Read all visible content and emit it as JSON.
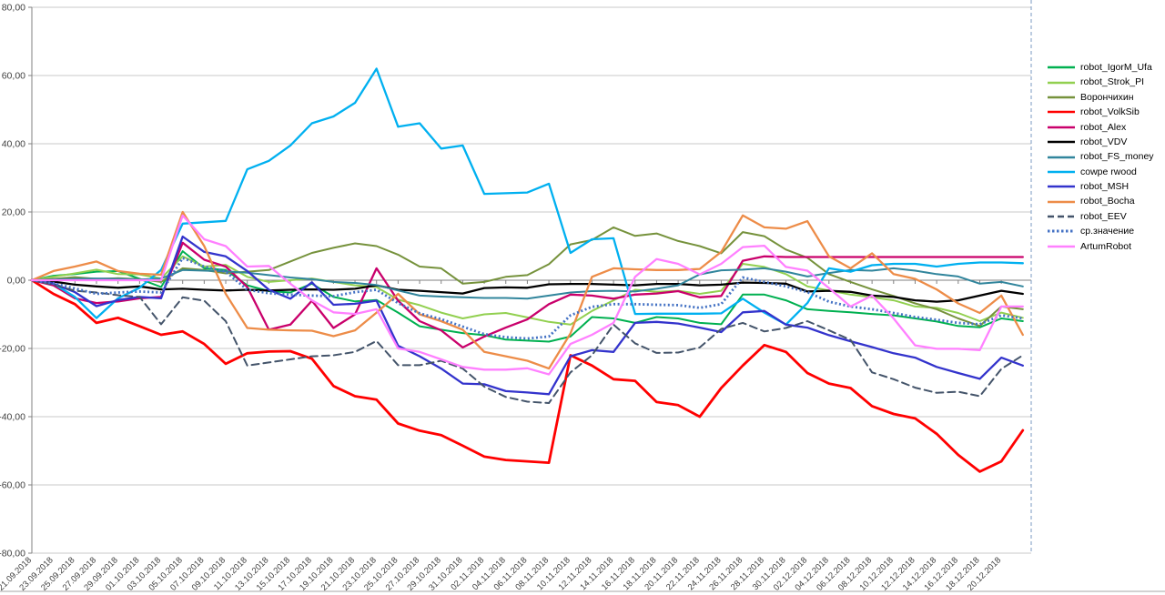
{
  "chart_data": {
    "type": "line",
    "title": "",
    "xlabel": "",
    "ylabel": "",
    "ylim": [
      -80,
      80
    ],
    "grid": true,
    "legend_position": "right",
    "y_tick_labels": [
      "80,00",
      "60,00",
      "40,00",
      "20,00",
      "0,00",
      "-20,00",
      "-40,00",
      "-60,00",
      "-80,00"
    ],
    "y_tick_values": [
      80,
      60,
      40,
      20,
      0,
      -20,
      -40,
      -60,
      -80
    ],
    "x_labels": [
      "21.09.2018",
      "23.09.2018",
      "25.09.2018",
      "27.09.2018",
      "29.09.2018",
      "01.10.2018",
      "03.10.2018",
      "05.10.2018",
      "07.10.2018",
      "09.10.2018",
      "11.10.2018",
      "13.10.2018",
      "15.10.2018",
      "17.10.2018",
      "19.10.2018",
      "21.10.2018",
      "23.10.2018",
      "25.10.2018",
      "27.10.2018",
      "29.10.2018",
      "31.10.2018",
      "02.11.2018",
      "04.11.2018",
      "06.11.2018",
      "08.11.2018",
      "10.11.2018",
      "12.11.2018",
      "14.11.2018",
      "16.11.2018",
      "18.11.2018",
      "20.11.2018",
      "22.11.2018",
      "24.11.2018",
      "26.11.2018",
      "28.11.2018",
      "30.11.2018",
      "02.12.2018",
      "04.12.2018",
      "06.12.2018",
      "08.12.2018",
      "10.12.2018",
      "12.12.2018",
      "14.12.2018",
      "16.12.2018",
      "18.12.2018",
      "20.12.2018",
      ""
    ],
    "axis_color": "#808080",
    "gridline_color": "#c9c9c9",
    "tick_label_color": "#3f3f3f",
    "page_break_line_color": "#7a99c0",
    "series": [
      {
        "name": "robot_IgorM_Ufa",
        "color": "#00B050",
        "style": "solid",
        "width": 2,
        "values": [
          0,
          1.3,
          1.8,
          2.5,
          2.7,
          0.4,
          -2,
          8.5,
          3.5,
          3,
          -1.5,
          -3.2,
          -3.6,
          -1,
          -4.9,
          -6.2,
          -5.8,
          -9.5,
          -13.5,
          -14.5,
          -15.5,
          -16.1,
          -17.4,
          -17.7,
          -18,
          -16.5,
          -10.8,
          -11.2,
          -12.5,
          -10.8,
          -11.2,
          -12.5,
          -12.9,
          -4.2,
          -4.2,
          -5.9,
          -8.5,
          -9,
          -9.4,
          -9.9,
          -10.3,
          -11.2,
          -12.1,
          -13.4,
          -13.8,
          -11.2,
          -12
        ]
      },
      {
        "name": "robot_Strok_PI",
        "color": "#92D050",
        "style": "solid",
        "width": 2,
        "values": [
          0,
          1,
          2,
          3.1,
          1.8,
          1.7,
          0.5,
          7,
          4,
          4.5,
          1,
          -0.5,
          0,
          0.5,
          -0.5,
          -1.5,
          -2,
          -5.7,
          -7.3,
          -9.5,
          -11.2,
          -10,
          -9.6,
          -10.9,
          -12.2,
          -13,
          -9,
          -5.9,
          -2.8,
          -3.4,
          -3.1,
          -4,
          -3.1,
          4.8,
          3.9,
          1.8,
          -1.8,
          -3,
          -4.2,
          -5,
          -5.9,
          -7.7,
          -8.1,
          -9.6,
          -12,
          -9.5,
          -11
        ]
      },
      {
        "name": "Ворончихин",
        "color": "#76923C",
        "style": "solid",
        "width": 2,
        "values": [
          0,
          0.4,
          0.9,
          0.4,
          0.6,
          0.3,
          -0.5,
          3.5,
          3,
          2,
          2.5,
          3,
          5.5,
          8,
          9.5,
          10.8,
          10,
          7.5,
          4,
          3.5,
          -1,
          -0.5,
          1,
          1.5,
          4.7,
          10.5,
          11.8,
          15.5,
          13,
          13.7,
          11.5,
          10,
          7.9,
          14.1,
          12.9,
          9,
          6.6,
          1.8,
          -0.5,
          -2.7,
          -4.6,
          -6.8,
          -8.5,
          -11.2,
          -13.4,
          -7.7,
          -8.5
        ]
      },
      {
        "name": "robot_VolkSib",
        "color": "#FF0000",
        "style": "solid",
        "width": 2.8,
        "values": [
          0,
          -4,
          -7,
          -12.5,
          -11,
          -13.5,
          -16,
          -15,
          -18.7,
          -24.5,
          -21.4,
          -20.9,
          -20.8,
          -23,
          -31,
          -34,
          -35,
          -42,
          -44.1,
          -45.4,
          -48.5,
          -51.7,
          -52.7,
          -53.1,
          -53.5,
          -22,
          -25,
          -29,
          -29.5,
          -35.7,
          -36.6,
          -40,
          -31.6,
          -25,
          -19,
          -21,
          -27.2,
          -30.3,
          -31.6,
          -36.9,
          -39.2,
          -40.5,
          -45,
          -51.2,
          -56.1,
          -53.1,
          -44
        ]
      },
      {
        "name": "robot_Alex",
        "color": "#C9006B",
        "style": "solid",
        "width": 2.3,
        "values": [
          0,
          -1.5,
          -5.3,
          -6.7,
          -6.2,
          -5.3,
          -4.9,
          11,
          6,
          4,
          -2,
          -14.5,
          -13,
          -6,
          -14,
          -10,
          3.5,
          -6,
          -12,
          -14.7,
          -19.7,
          -16.5,
          -13.9,
          -11.5,
          -7,
          -4.2,
          -4.5,
          -5.4,
          -4.2,
          -3.9,
          -3.2,
          -5,
          -4.6,
          5.7,
          7,
          6.8,
          6.8,
          6.8,
          6.8,
          6.8,
          6.8,
          6.8,
          6.8,
          6.8,
          6.8,
          6.8,
          6.8
        ]
      },
      {
        "name": "robot_VDV",
        "color": "#000000",
        "style": "solid",
        "width": 2.3,
        "values": [
          0,
          -0.4,
          -1.3,
          -1.8,
          -2.2,
          -1.8,
          -2.7,
          -2.5,
          -2.8,
          -3,
          -2.8,
          -3,
          -2.8,
          -2.7,
          -2.8,
          -2.5,
          -1.5,
          -2.8,
          -3.1,
          -3.5,
          -3.9,
          -2.3,
          -2.1,
          -2.2,
          -1.2,
          -1.1,
          -1.1,
          -1.3,
          -1.5,
          -1.1,
          -1.1,
          -1.5,
          -1.3,
          -0.7,
          -0.8,
          -1,
          -3.3,
          -3.1,
          -3.4,
          -4.5,
          -4.9,
          -5.9,
          -6.3,
          -5.9,
          -4.5,
          -3.1,
          -4
        ]
      },
      {
        "name": "robot_FS_money",
        "color": "#31859C",
        "style": "solid",
        "width": 2,
        "values": [
          0,
          0.2,
          0.4,
          0.5,
          0.4,
          0.2,
          0.5,
          3,
          2.8,
          2.6,
          2.2,
          1.5,
          0.8,
          0.3,
          -0.5,
          -0.8,
          -1.4,
          -3,
          -4.5,
          -4.8,
          -5,
          -5.2,
          -5.2,
          -5.4,
          -4.5,
          -3.6,
          -3.2,
          -3.1,
          -3.3,
          -2.5,
          -1.5,
          1.7,
          2.9,
          3.1,
          3.5,
          2.5,
          1.1,
          2.1,
          3,
          2.8,
          3.5,
          2.8,
          1.8,
          1.1,
          -1,
          -0.5,
          -1.8
        ]
      },
      {
        "name": "cowpe rwood",
        "color": "#00B0F0",
        "style": "solid",
        "width": 2.3,
        "values": [
          0,
          -1,
          -4.9,
          -11.1,
          -5.3,
          -2.2,
          3,
          16.6,
          17,
          17.4,
          32.5,
          35,
          39.5,
          46,
          48,
          52,
          62,
          45,
          46,
          38.6,
          39.5,
          25.3,
          25.5,
          25.7,
          28.3,
          8,
          12,
          12.3,
          -9.9,
          -9.8,
          -9.8,
          -9.8,
          -9.7,
          -5.4,
          -9.5,
          -13,
          -6.7,
          3.5,
          2.5,
          4.4,
          4.8,
          4.8,
          4,
          4.8,
          5.2,
          5.2,
          5
        ]
      },
      {
        "name": "robot_MSH",
        "color": "#3333CC",
        "style": "solid",
        "width": 2.3,
        "values": [
          0,
          -1,
          -3.5,
          -7.6,
          -5.8,
          -4.9,
          -5.3,
          12.8,
          8.3,
          7,
          2.7,
          -2.8,
          -5.4,
          -0.6,
          -7.2,
          -6.9,
          -6,
          -19.2,
          -22.3,
          -25.9,
          -30.3,
          -30.5,
          -32.5,
          -32.9,
          -33.4,
          -22.3,
          -20.5,
          -21,
          -12.5,
          -12.2,
          -12.7,
          -13.9,
          -15.2,
          -9.4,
          -9,
          -13,
          -13.9,
          -16.1,
          -17.9,
          -19.6,
          -21.4,
          -22.7,
          -25.4,
          -27.2,
          -28.9,
          -22.7,
          -25
        ]
      },
      {
        "name": "robot_Bocha",
        "color": "#ED8C48",
        "style": "solid",
        "width": 2.3,
        "values": [
          0,
          2.7,
          4,
          5.5,
          2.7,
          1.9,
          1.6,
          20,
          10,
          -4,
          -14,
          -14.5,
          -14.7,
          -14.8,
          -16.4,
          -14.7,
          -9.5,
          -4,
          -10,
          -12,
          -14.5,
          -21,
          -22.3,
          -23.6,
          -25.9,
          -15.6,
          1,
          3.5,
          3.2,
          3,
          3,
          3.3,
          8.3,
          19,
          15.5,
          15.1,
          17.3,
          7,
          3.5,
          7.9,
          1.8,
          0.4,
          -2.7,
          -6.8,
          -9.6,
          -4.5,
          -16
        ]
      },
      {
        "name": "robot_EEV",
        "color": "#44546A",
        "style": "dashed",
        "width": 2,
        "values": [
          0,
          -1.3,
          -3.1,
          -3.6,
          -4.4,
          -4.9,
          -12.9,
          -5,
          -6,
          -12,
          -25,
          -24.1,
          -23.2,
          -22.3,
          -22,
          -21,
          -17.8,
          -24.9,
          -24.9,
          -23.6,
          -25.9,
          -31.2,
          -34.2,
          -35.6,
          -36,
          -27,
          -22,
          -13,
          -18.5,
          -21.3,
          -21.2,
          -19.7,
          -14.3,
          -12.5,
          -15,
          -14,
          -12,
          -14.7,
          -17.5,
          -27,
          -29,
          -31.5,
          -33,
          -32.7,
          -34,
          -26,
          -22
        ]
      },
      {
        "name": "ср.значение",
        "color": "#4472C4",
        "style": "dotted",
        "width": 2.8,
        "values": [
          0,
          -0.9,
          -2.4,
          -4,
          -3.6,
          -3.3,
          -3.6,
          6.5,
          4,
          2.5,
          -2.8,
          -3.8,
          -4.2,
          -4.5,
          -4.7,
          -3.5,
          -2.8,
          -6.7,
          -9.7,
          -11.4,
          -13.6,
          -15.8,
          -16.7,
          -17.1,
          -16.5,
          -10.3,
          -7.8,
          -7,
          -7,
          -7.2,
          -7.3,
          -8.1,
          -7,
          0.8,
          -0.5,
          -1.8,
          -3.5,
          -6.3,
          -7.7,
          -8.5,
          -9.6,
          -10.8,
          -11.6,
          -12.5,
          -12.9,
          -10.3,
          -11.2
        ]
      },
      {
        "name": "ArtumRobot",
        "color": "#FF80FF",
        "style": "solid",
        "width": 2.3,
        "values": [
          0,
          0,
          0,
          0,
          0,
          0,
          0,
          19,
          12,
          10,
          4,
          4.2,
          -1,
          -5.9,
          -9.4,
          -9.9,
          -8.5,
          -20,
          -21,
          -23.2,
          -25.4,
          -26.2,
          -26.2,
          -25.8,
          -27.6,
          -18.7,
          -16,
          -12.5,
          1,
          6.2,
          4.8,
          1.7,
          4.8,
          9.7,
          10.1,
          3.9,
          2.8,
          -2.3,
          -7.7,
          -4.5,
          -11.2,
          -19.1,
          -20.1,
          -20.1,
          -20.5,
          -7.7,
          -7.7
        ]
      }
    ]
  }
}
